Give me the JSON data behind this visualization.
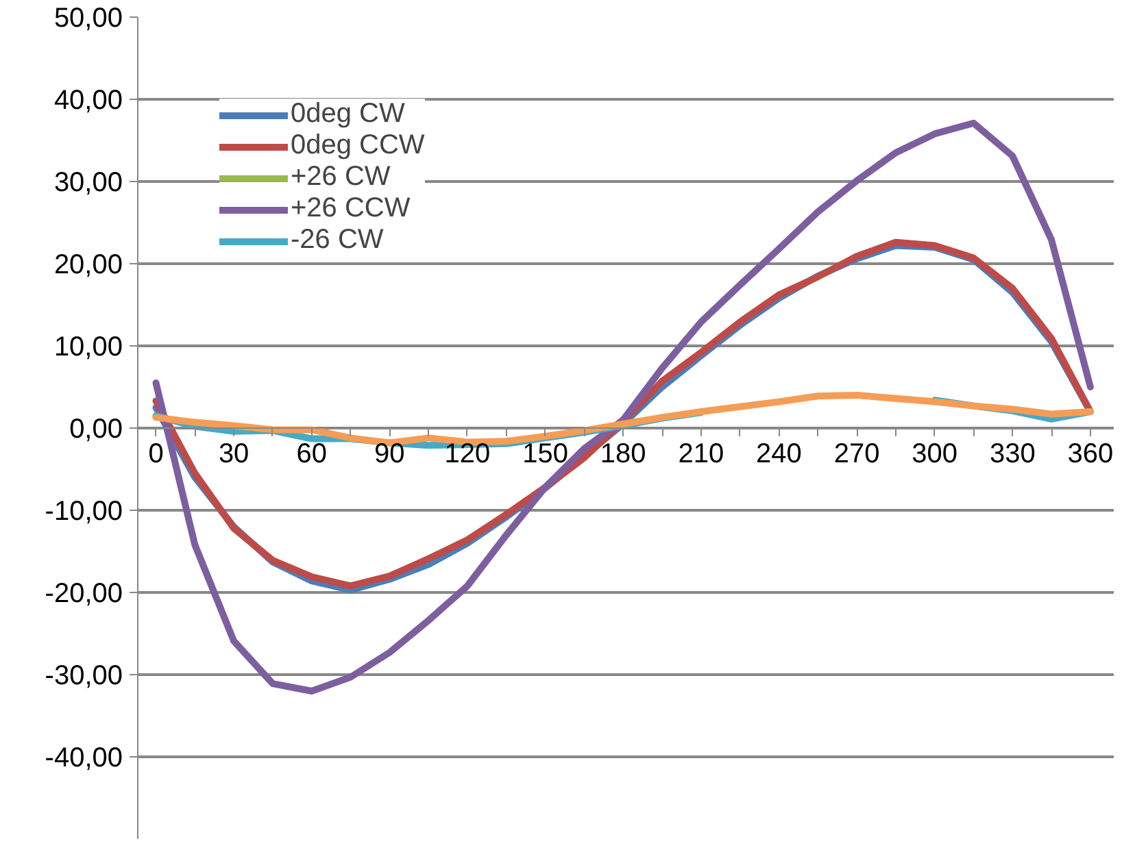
{
  "chart_data": {
    "type": "line",
    "x": [
      0,
      15,
      30,
      45,
      60,
      75,
      90,
      105,
      120,
      135,
      150,
      165,
      180,
      195,
      210,
      225,
      240,
      255,
      270,
      285,
      300,
      315,
      330,
      345,
      360
    ],
    "xlim": [
      -7,
      369
    ],
    "xticks": [
      0,
      {
        "value": 15,
        "label": null
      },
      30,
      {
        "value": 45,
        "label": null
      },
      60,
      {
        "value": 75,
        "label": null
      },
      90,
      {
        "value": 105,
        "label": null
      },
      120,
      {
        "value": 135,
        "label": null
      },
      150,
      {
        "value": 165,
        "label": null
      },
      180,
      {
        "value": 195,
        "label": null
      },
      210,
      {
        "value": 225,
        "label": null
      },
      240,
      {
        "value": 255,
        "label": null
      },
      270,
      {
        "value": 285,
        "label": null
      },
      300,
      {
        "value": 315,
        "label": null
      },
      330,
      {
        "value": 345,
        "label": null
      },
      360
    ],
    "ylim": [
      -50,
      50
    ],
    "yticks": [
      {
        "value": 50,
        "label": "50,00"
      },
      {
        "value": 40,
        "label": "40,00"
      },
      {
        "value": 30,
        "label": "30,00"
      },
      {
        "value": 20,
        "label": "20,00"
      },
      {
        "value": 10,
        "label": "10,00"
      },
      {
        "value": 0,
        "label": "0,00"
      },
      {
        "value": -10,
        "label": "-10,00"
      },
      {
        "value": -20,
        "label": "-20,00"
      },
      {
        "value": -30,
        "label": "-30,00"
      },
      {
        "value": -40,
        "label": "-40,00"
      }
    ],
    "grid": "y",
    "legend": "top left",
    "marker": "none",
    "line_style": "solid",
    "series": [
      {
        "name": "0deg CW",
        "color": "#4a7ebb",
        "values": [
          2.5,
          -6,
          -12,
          -16.3,
          -18.6,
          -19.7,
          -18.4,
          -16.6,
          -14,
          -10.8,
          -7.3,
          -3.4,
          0.5,
          5,
          8.8,
          12.5,
          15.8,
          18.5,
          20.6,
          22.2,
          22,
          20.5,
          16.5,
          10.5,
          2
        ]
      },
      {
        "name": "0deg CCW",
        "color": "#be4b48",
        "values": [
          3.3,
          -5.5,
          -12.2,
          -16.1,
          -18.1,
          -19.2,
          -18,
          -15.9,
          -13.6,
          -10.5,
          -7.2,
          -3.6,
          0.8,
          5.7,
          9.2,
          12.9,
          16.2,
          18.4,
          20.9,
          22.6,
          22.2,
          20.7,
          17,
          10.9,
          2
        ]
      },
      {
        "name": "+26 CW",
        "color": "#98b954",
        "values": [
          null,
          null,
          null,
          null,
          null,
          null,
          null,
          null,
          null,
          null,
          null,
          null,
          null,
          null,
          null,
          null,
          null,
          null,
          null,
          null,
          null,
          null,
          null,
          null,
          null
        ]
      },
      {
        "name": "+26 CCW",
        "color": "#7d5fa0",
        "values": [
          5.5,
          -14.2,
          -25.9,
          -31.1,
          -32,
          -30.3,
          -27.3,
          -23.4,
          -19.2,
          -13,
          -7.2,
          -2.5,
          1,
          7.3,
          12.9,
          17.4,
          21.8,
          26.3,
          30.1,
          33.5,
          35.8,
          37.1,
          33.1,
          22.9,
          5
        ]
      },
      {
        "name": "-26 CW",
        "color": "#46aac5",
        "values": [
          1.5,
          0.2,
          -0.4,
          -0.3,
          -1.3,
          -1.3,
          -1.8,
          -2.1,
          -2,
          -1.9,
          -1.2,
          -0.5,
          0.3,
          1.2,
          1.9,
          null,
          null,
          null,
          null,
          null,
          3.4,
          2.7,
          2.1,
          1.1,
          2
        ]
      },
      {
        "color": "#f59d56",
        "values": [
          1.3,
          0.7,
          0.3,
          -0.2,
          -0.2,
          -1.2,
          -1.8,
          -1.2,
          -1.7,
          -1.6,
          -1,
          -0.3,
          0.5,
          1.3,
          2,
          2.6,
          3.2,
          3.9,
          4,
          3.6,
          3.2,
          2.7,
          2.3,
          1.7,
          2
        ]
      }
    ]
  }
}
